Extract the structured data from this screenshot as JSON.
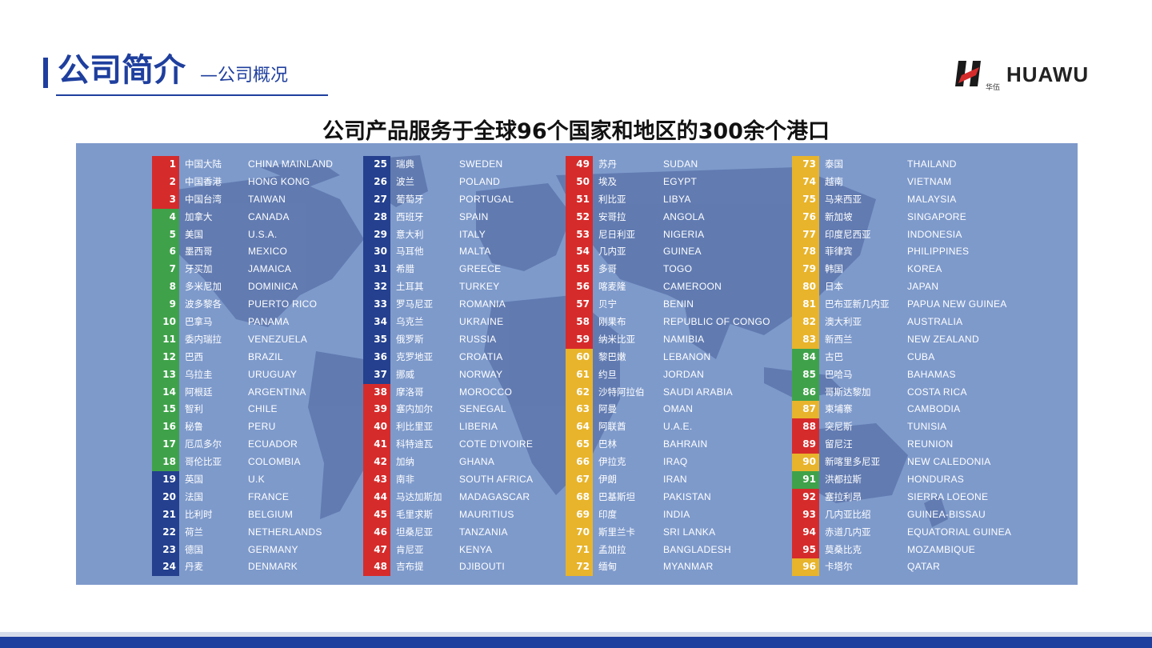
{
  "header": {
    "title": "公司简介",
    "subtitle": "—公司概况",
    "logo_text": "HUAWU",
    "logo_cn": "华伍"
  },
  "headline": "公司产品服务于全球96个国家和地区的300余个港口",
  "colors": {
    "red": "#d62b2b",
    "green": "#3fa24a",
    "blue": "#24408e",
    "yellow": "#e8b42b",
    "panel": "#7e9acb",
    "brand": "#1f3f9e"
  },
  "countries": [
    {
      "n": "1",
      "cn": "中国大陆",
      "en": "CHINA MAINLAND",
      "c": "red"
    },
    {
      "n": "2",
      "cn": "中国香港",
      "en": "HONG KONG",
      "c": "red"
    },
    {
      "n": "3",
      "cn": "中国台湾",
      "en": "TAIWAN",
      "c": "red"
    },
    {
      "n": "4",
      "cn": "加拿大",
      "en": "CANADA",
      "c": "green"
    },
    {
      "n": "5",
      "cn": "美国",
      "en": "U.S.A.",
      "c": "green"
    },
    {
      "n": "6",
      "cn": "墨西哥",
      "en": "MEXICO",
      "c": "green"
    },
    {
      "n": "7",
      "cn": "牙买加",
      "en": "JAMAICA",
      "c": "green"
    },
    {
      "n": "8",
      "cn": "多米尼加",
      "en": "DOMINICA",
      "c": "green"
    },
    {
      "n": "9",
      "cn": "波多黎各",
      "en": "PUERTO RICO",
      "c": "green"
    },
    {
      "n": "10",
      "cn": "巴拿马",
      "en": "PANAMA",
      "c": "green"
    },
    {
      "n": "11",
      "cn": "委内瑞拉",
      "en": "VENEZUELA",
      "c": "green"
    },
    {
      "n": "12",
      "cn": "巴西",
      "en": "BRAZIL",
      "c": "green"
    },
    {
      "n": "13",
      "cn": "乌拉圭",
      "en": "URUGUAY",
      "c": "green"
    },
    {
      "n": "14",
      "cn": "阿根廷",
      "en": "ARGENTINA",
      "c": "green"
    },
    {
      "n": "15",
      "cn": "智利",
      "en": "CHILE",
      "c": "green"
    },
    {
      "n": "16",
      "cn": "秘鲁",
      "en": "PERU",
      "c": "green"
    },
    {
      "n": "17",
      "cn": "厄瓜多尔",
      "en": "ECUADOR",
      "c": "green"
    },
    {
      "n": "18",
      "cn": "哥伦比亚",
      "en": "COLOMBIA",
      "c": "green"
    },
    {
      "n": "19",
      "cn": "英国",
      "en": "U.K",
      "c": "blue"
    },
    {
      "n": "20",
      "cn": "法国",
      "en": "FRANCE",
      "c": "blue"
    },
    {
      "n": "21",
      "cn": "比利时",
      "en": "BELGIUM",
      "c": "blue"
    },
    {
      "n": "22",
      "cn": "荷兰",
      "en": "NETHERLANDS",
      "c": "blue"
    },
    {
      "n": "23",
      "cn": "德国",
      "en": "GERMANY",
      "c": "blue"
    },
    {
      "n": "24",
      "cn": "丹麦",
      "en": "DENMARK",
      "c": "blue"
    },
    {
      "n": "25",
      "cn": "瑞典",
      "en": "SWEDEN",
      "c": "blue"
    },
    {
      "n": "26",
      "cn": "波兰",
      "en": "POLAND",
      "c": "blue"
    },
    {
      "n": "27",
      "cn": "葡萄牙",
      "en": "PORTUGAL",
      "c": "blue"
    },
    {
      "n": "28",
      "cn": "西班牙",
      "en": "SPAIN",
      "c": "blue"
    },
    {
      "n": "29",
      "cn": "意大利",
      "en": "ITALY",
      "c": "blue"
    },
    {
      "n": "30",
      "cn": "马耳他",
      "en": "MALTA",
      "c": "blue"
    },
    {
      "n": "31",
      "cn": "希腊",
      "en": "GREECE",
      "c": "blue"
    },
    {
      "n": "32",
      "cn": "土耳其",
      "en": "TURKEY",
      "c": "blue"
    },
    {
      "n": "33",
      "cn": "罗马尼亚",
      "en": "ROMANIA",
      "c": "blue"
    },
    {
      "n": "34",
      "cn": "乌克兰",
      "en": "UKRAINE",
      "c": "blue"
    },
    {
      "n": "35",
      "cn": "俄罗斯",
      "en": "RUSSIA",
      "c": "blue"
    },
    {
      "n": "36",
      "cn": "克罗地亚",
      "en": "CROATIA",
      "c": "blue"
    },
    {
      "n": "37",
      "cn": "挪威",
      "en": "NORWAY",
      "c": "blue"
    },
    {
      "n": "38",
      "cn": "摩洛哥",
      "en": "MOROCCO",
      "c": "red"
    },
    {
      "n": "39",
      "cn": "塞内加尔",
      "en": "SENEGAL",
      "c": "red"
    },
    {
      "n": "40",
      "cn": "利比里亚",
      "en": "LIBERIA",
      "c": "red"
    },
    {
      "n": "41",
      "cn": "科特迪瓦",
      "en": "COTE D'IVOIRE",
      "c": "red"
    },
    {
      "n": "42",
      "cn": "加纳",
      "en": "GHANA",
      "c": "red"
    },
    {
      "n": "43",
      "cn": "南非",
      "en": "SOUTH AFRICA",
      "c": "red"
    },
    {
      "n": "44",
      "cn": "马达加斯加",
      "en": "MADAGASCAR",
      "c": "red"
    },
    {
      "n": "45",
      "cn": "毛里求斯",
      "en": "MAURITIUS",
      "c": "red"
    },
    {
      "n": "46",
      "cn": "坦桑尼亚",
      "en": "TANZANIA",
      "c": "red"
    },
    {
      "n": "47",
      "cn": "肯尼亚",
      "en": "KENYA",
      "c": "red"
    },
    {
      "n": "48",
      "cn": "吉布提",
      "en": "DJIBOUTI",
      "c": "red"
    },
    {
      "n": "49",
      "cn": "苏丹",
      "en": "SUDAN",
      "c": "red"
    },
    {
      "n": "50",
      "cn": "埃及",
      "en": "EGYPT",
      "c": "red"
    },
    {
      "n": "51",
      "cn": "利比亚",
      "en": "LIBYA",
      "c": "red"
    },
    {
      "n": "52",
      "cn": "安哥拉",
      "en": "ANGOLA",
      "c": "red"
    },
    {
      "n": "53",
      "cn": "尼日利亚",
      "en": "NIGERIA",
      "c": "red"
    },
    {
      "n": "54",
      "cn": "几内亚",
      "en": "GUINEA",
      "c": "red"
    },
    {
      "n": "55",
      "cn": "多哥",
      "en": "TOGO",
      "c": "red"
    },
    {
      "n": "56",
      "cn": "喀麦隆",
      "en": "CAMEROON",
      "c": "red"
    },
    {
      "n": "57",
      "cn": "贝宁",
      "en": "BENIN",
      "c": "red"
    },
    {
      "n": "58",
      "cn": "刚果布",
      "en": "REPUBLIC OF CONGO",
      "c": "red"
    },
    {
      "n": "59",
      "cn": "纳米比亚",
      "en": "NAMIBIA",
      "c": "red"
    },
    {
      "n": "60",
      "cn": "黎巴嫩",
      "en": "LEBANON",
      "c": "yellow"
    },
    {
      "n": "61",
      "cn": "约旦",
      "en": "JORDAN",
      "c": "yellow"
    },
    {
      "n": "62",
      "cn": "沙特阿拉伯",
      "en": "SAUDI ARABIA",
      "c": "yellow"
    },
    {
      "n": "63",
      "cn": "阿曼",
      "en": "OMAN",
      "c": "yellow"
    },
    {
      "n": "64",
      "cn": "阿联酋",
      "en": "U.A.E.",
      "c": "yellow"
    },
    {
      "n": "65",
      "cn": "巴林",
      "en": "BAHRAIN",
      "c": "yellow"
    },
    {
      "n": "66",
      "cn": "伊拉克",
      "en": "IRAQ",
      "c": "yellow"
    },
    {
      "n": "67",
      "cn": "伊朗",
      "en": "IRAN",
      "c": "yellow"
    },
    {
      "n": "68",
      "cn": "巴基斯坦",
      "en": "PAKISTAN",
      "c": "yellow"
    },
    {
      "n": "69",
      "cn": "印度",
      "en": "INDIA",
      "c": "yellow"
    },
    {
      "n": "70",
      "cn": "斯里兰卡",
      "en": "SRI LANKA",
      "c": "yellow"
    },
    {
      "n": "71",
      "cn": "孟加拉",
      "en": "BANGLADESH",
      "c": "yellow"
    },
    {
      "n": "72",
      "cn": "缅甸",
      "en": "MYANMAR",
      "c": "yellow"
    },
    {
      "n": "73",
      "cn": "泰国",
      "en": "THAILAND",
      "c": "yellow"
    },
    {
      "n": "74",
      "cn": "越南",
      "en": "VIETNAM",
      "c": "yellow"
    },
    {
      "n": "75",
      "cn": "马来西亚",
      "en": "MALAYSIA",
      "c": "yellow"
    },
    {
      "n": "76",
      "cn": "新加坡",
      "en": "SINGAPORE",
      "c": "yellow"
    },
    {
      "n": "77",
      "cn": "印度尼西亚",
      "en": "INDONESIA",
      "c": "yellow"
    },
    {
      "n": "78",
      "cn": "菲律宾",
      "en": "PHILIPPINES",
      "c": "yellow"
    },
    {
      "n": "79",
      "cn": "韩国",
      "en": "KOREA",
      "c": "yellow"
    },
    {
      "n": "80",
      "cn": "日本",
      "en": "JAPAN",
      "c": "yellow"
    },
    {
      "n": "81",
      "cn": "巴布亚新几内亚",
      "en": "PAPUA NEW GUINEA",
      "c": "yellow"
    },
    {
      "n": "82",
      "cn": "澳大利亚",
      "en": "AUSTRALIA",
      "c": "yellow"
    },
    {
      "n": "83",
      "cn": "新西兰",
      "en": "NEW ZEALAND",
      "c": "yellow"
    },
    {
      "n": "84",
      "cn": "古巴",
      "en": "CUBA",
      "c": "green"
    },
    {
      "n": "85",
      "cn": "巴哈马",
      "en": "BAHAMAS",
      "c": "green"
    },
    {
      "n": "86",
      "cn": "哥斯达黎加",
      "en": "COSTA RICA",
      "c": "green"
    },
    {
      "n": "87",
      "cn": "柬埔寨",
      "en": "CAMBODIA",
      "c": "yellow"
    },
    {
      "n": "88",
      "cn": "突尼斯",
      "en": "TUNISIA",
      "c": "red"
    },
    {
      "n": "89",
      "cn": "留尼汪",
      "en": "REUNION",
      "c": "red"
    },
    {
      "n": "90",
      "cn": "新喀里多尼亚",
      "en": "NEW CALEDONIA",
      "c": "yellow"
    },
    {
      "n": "91",
      "cn": "洪都拉斯",
      "en": "HONDURAS",
      "c": "green"
    },
    {
      "n": "92",
      "cn": "塞拉利昂",
      "en": "SIERRA LOEONE",
      "c": "red"
    },
    {
      "n": "93",
      "cn": "几内亚比绍",
      "en": "GUINEA-BISSAU",
      "c": "red"
    },
    {
      "n": "94",
      "cn": "赤道几内亚",
      "en": "EQUATORIAL GUINEA",
      "c": "red"
    },
    {
      "n": "95",
      "cn": "莫桑比克",
      "en": "MOZAMBIQUE",
      "c": "red"
    },
    {
      "n": "96",
      "cn": "卡塔尔",
      "en": "QATAR",
      "c": "yellow"
    }
  ]
}
